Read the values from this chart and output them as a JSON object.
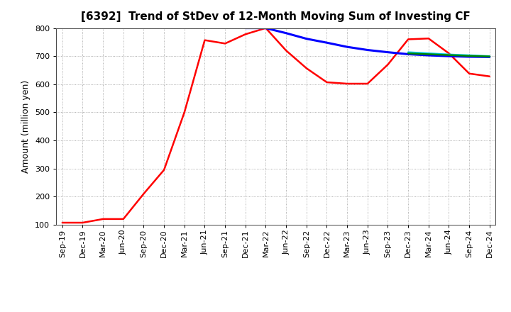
{
  "title": "[6392]  Trend of StDev of 12-Month Moving Sum of Investing CF",
  "ylabel": "Amount (million yen)",
  "ylim": [
    100,
    800
  ],
  "yticks": [
    100,
    200,
    300,
    400,
    500,
    600,
    700,
    800
  ],
  "background_color": "#ffffff",
  "grid_color": "#999999",
  "title_fontsize": 11,
  "axis_fontsize": 9,
  "tick_fontsize": 8,
  "x_labels": [
    "Sep-19",
    "Dec-19",
    "Mar-20",
    "Jun-20",
    "Sep-20",
    "Dec-20",
    "Mar-21",
    "Jun-21",
    "Sep-21",
    "Dec-21",
    "Mar-22",
    "Jun-22",
    "Sep-22",
    "Dec-22",
    "Mar-23",
    "Jun-23",
    "Sep-23",
    "Dec-23",
    "Mar-24",
    "Jun-24",
    "Sep-24",
    "Dec-24"
  ],
  "series": {
    "3 Years": {
      "color": "#ff0000",
      "linewidth": 1.8,
      "data_x": [
        0,
        1,
        2,
        3,
        4,
        5,
        6,
        7,
        8,
        9,
        10,
        11,
        12,
        13,
        14,
        15,
        16,
        17,
        18,
        19,
        20,
        21
      ],
      "data_y": [
        107,
        107,
        120,
        120,
        210,
        295,
        500,
        757,
        745,
        778,
        800,
        720,
        657,
        607,
        602,
        602,
        670,
        760,
        763,
        710,
        638,
        628
      ]
    },
    "5 Years": {
      "color": "#0000ff",
      "linewidth": 2.2,
      "data_x": [
        9,
        10,
        11,
        12,
        13,
        14,
        15,
        16,
        17,
        18,
        19,
        20,
        21
      ],
      "data_y": [
        800,
        800,
        782,
        762,
        748,
        733,
        722,
        714,
        707,
        703,
        700,
        698,
        697
      ]
    },
    "7 Years": {
      "color": "#00ccee",
      "linewidth": 1.8,
      "data_x": [
        17,
        18,
        19,
        20,
        21
      ],
      "data_y": [
        714,
        710,
        706,
        703,
        700
      ]
    },
    "10 Years": {
      "color": "#008800",
      "linewidth": 1.8,
      "data_x": [
        17,
        18,
        19,
        20,
        21
      ],
      "data_y": [
        710,
        707,
        704,
        701,
        699
      ]
    }
  }
}
